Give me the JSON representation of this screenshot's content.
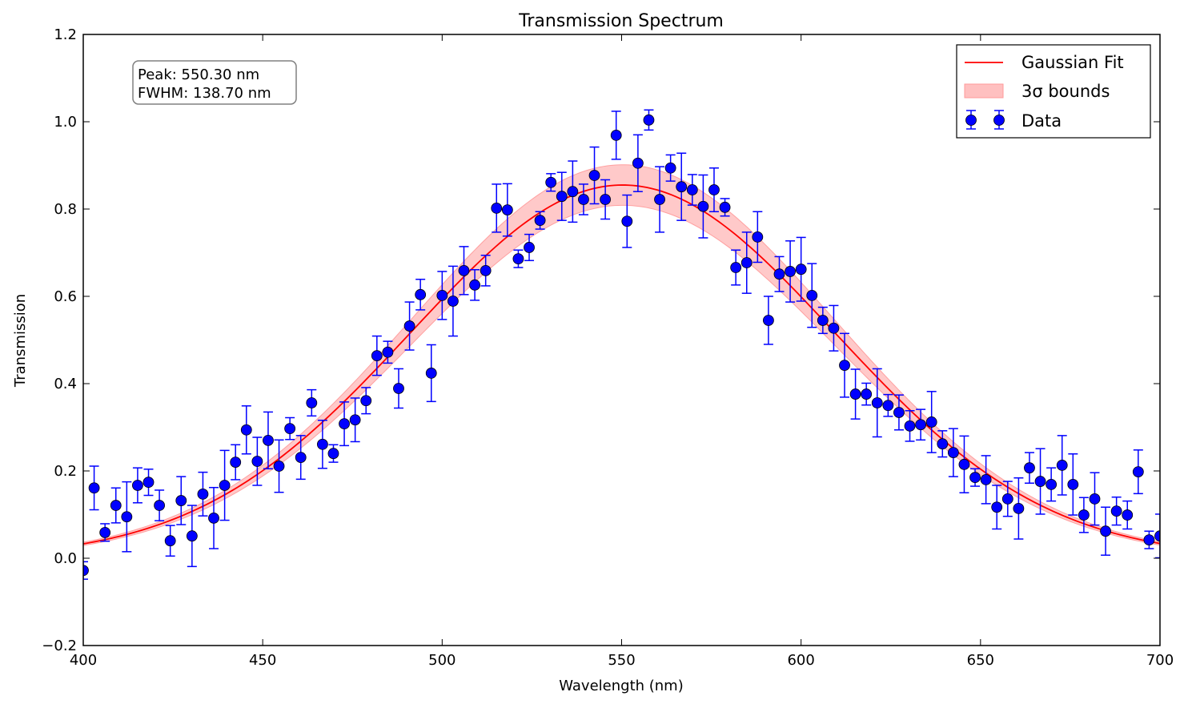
{
  "chart_data": {
    "type": "scatter",
    "title": "Transmission Spectrum",
    "xlabel": "Wavelength (nm)",
    "ylabel": "Transmission",
    "xlim": [
      400,
      700
    ],
    "ylim": [
      -0.2,
      1.2
    ],
    "xticks": [
      "400",
      "450",
      "500",
      "550",
      "600",
      "650",
      "700"
    ],
    "yticks": [
      "−0.2",
      "0.0",
      "0.2",
      "0.4",
      "0.6",
      "0.8",
      "1.0",
      "1.2"
    ],
    "grid": false,
    "legend_position": "top-right",
    "legend": [
      "Gaussian Fit",
      "3σ bounds",
      "Data"
    ],
    "annotation": [
      "Peak: 550.30 nm",
      "FWHM: 138.70 nm"
    ],
    "colors": {
      "data": "#0000ff",
      "fit": "#ff0000",
      "band": "#ffc0c0"
    },
    "fit": {
      "name": "Gaussian Fit",
      "peak_nm": 550.3,
      "fwhm_nm": 138.7,
      "amplitude": 0.855
    },
    "band": {
      "name": "3σ bounds"
    },
    "series": [
      {
        "name": "Data",
        "x_start": 400,
        "x_end": 700,
        "count": 100,
        "y": [
          -0.028,
          0.161,
          0.059,
          0.121,
          0.095,
          0.167,
          0.174,
          0.121,
          0.04,
          0.132,
          0.051,
          0.147,
          0.092,
          0.167,
          0.22,
          0.294,
          0.222,
          0.27,
          0.211,
          0.297,
          0.231,
          0.356,
          0.261,
          0.24,
          0.308,
          0.317,
          0.361,
          0.464,
          0.472,
          0.389,
          0.532,
          0.604,
          0.424,
          0.602,
          0.589,
          0.659,
          0.626,
          0.659,
          0.802,
          0.798,
          0.686,
          0.712,
          0.774,
          0.861,
          0.829,
          0.84,
          0.822,
          0.877,
          0.822,
          0.969,
          0.772,
          0.905,
          1.004,
          0.822,
          0.894,
          0.851,
          0.844,
          0.806,
          0.844,
          0.804,
          0.666,
          0.677,
          0.736,
          0.545,
          0.651,
          0.657,
          0.662,
          0.602,
          0.545,
          0.527,
          0.442,
          0.376,
          0.376,
          0.356,
          0.35,
          0.334,
          0.303,
          0.306,
          0.312,
          0.262,
          0.242,
          0.215,
          0.185,
          0.18,
          0.117,
          0.136,
          0.114,
          0.207,
          0.176,
          0.169,
          0.213,
          0.169,
          0.099,
          0.136,
          0.062,
          0.108,
          0.099,
          0.198,
          0.042,
          0.051
        ],
        "yerr": [
          0.02,
          0.05,
          0.02,
          0.04,
          0.08,
          0.04,
          0.03,
          0.035,
          0.035,
          0.055,
          0.07,
          0.05,
          0.07,
          0.08,
          0.04,
          0.055,
          0.055,
          0.065,
          0.06,
          0.025,
          0.05,
          0.03,
          0.055,
          0.02,
          0.05,
          0.05,
          0.03,
          0.045,
          0.025,
          0.045,
          0.055,
          0.035,
          0.065,
          0.055,
          0.08,
          0.055,
          0.035,
          0.035,
          0.055,
          0.06,
          0.02,
          0.03,
          0.02,
          0.02,
          0.055,
          0.07,
          0.035,
          0.065,
          0.045,
          0.055,
          0.06,
          0.065,
          0.023,
          0.075,
          0.03,
          0.077,
          0.035,
          0.072,
          0.05,
          0.02,
          0.04,
          0.07,
          0.058,
          0.055,
          0.04,
          0.07,
          0.073,
          0.073,
          0.03,
          0.052,
          0.073,
          0.057,
          0.025,
          0.078,
          0.025,
          0.04,
          0.035,
          0.035,
          0.07,
          0.03,
          0.055,
          0.065,
          0.02,
          0.055,
          0.05,
          0.04,
          0.07,
          0.035,
          0.075,
          0.038,
          0.068,
          0.07,
          0.04,
          0.06,
          0.055,
          0.032,
          0.032,
          0.05,
          0.02,
          0.05
        ]
      }
    ]
  }
}
